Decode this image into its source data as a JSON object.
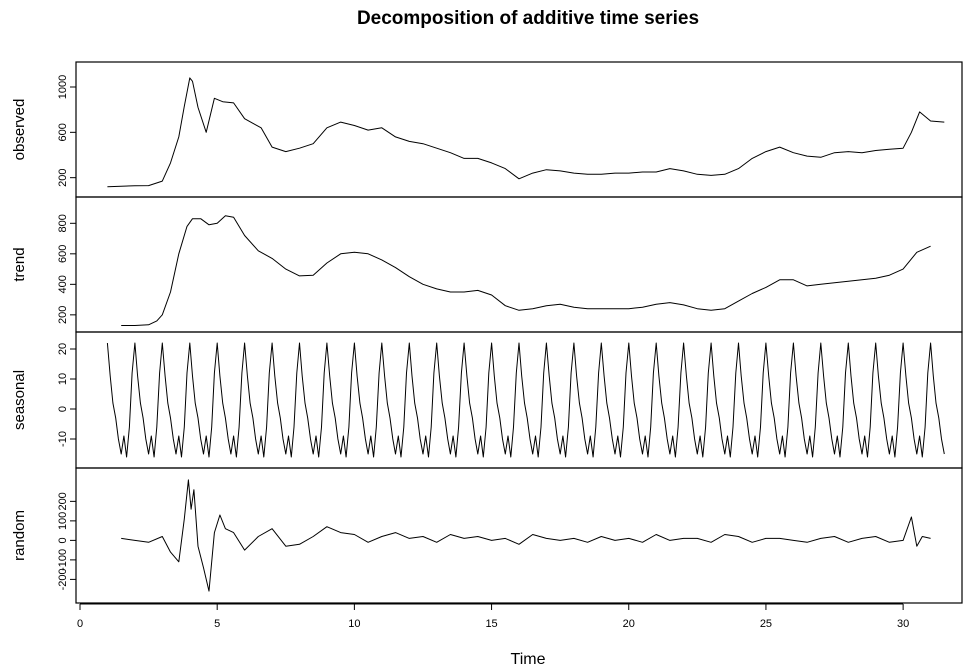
{
  "chart_data": {
    "type": "line",
    "title": "Decomposition of additive time series",
    "xlabel": "Time",
    "xlim": [
      0,
      32
    ],
    "x_ticks": [
      "0",
      "5",
      "10",
      "15",
      "20",
      "25",
      "30"
    ],
    "grid": false,
    "line_color": "#000000",
    "panels": [
      {
        "name": "observed",
        "ylabel": "observed",
        "ylim": [
          100,
          1150
        ],
        "y_ticks": [
          "200",
          "600",
          "1000"
        ],
        "x": [
          1,
          1.5,
          2,
          2.5,
          3,
          3.3,
          3.6,
          3.8,
          4.0,
          4.1,
          4.3,
          4.6,
          4.9,
          5.2,
          5.6,
          6.0,
          6.3,
          6.6,
          7.0,
          7.5,
          8.0,
          8.5,
          9.0,
          9.5,
          10,
          10.5,
          11,
          11.5,
          12,
          12.5,
          13,
          13.5,
          14,
          14.5,
          15,
          15.5,
          16,
          16.5,
          17,
          17.5,
          18,
          18.5,
          19,
          19.5,
          20,
          20.5,
          21,
          21.5,
          22,
          22.5,
          23,
          23.5,
          24,
          24.5,
          25,
          25.5,
          26,
          26.5,
          27,
          27.5,
          28,
          28.5,
          29,
          29.5,
          30,
          30.3,
          30.6,
          31.0,
          31.5
        ],
        "values": [
          120,
          125,
          128,
          130,
          170,
          330,
          560,
          830,
          1080,
          1050,
          820,
          600,
          900,
          870,
          860,
          720,
          680,
          640,
          470,
          430,
          460,
          500,
          640,
          690,
          660,
          620,
          640,
          560,
          520,
          500,
          460,
          420,
          370,
          370,
          330,
          280,
          190,
          240,
          270,
          260,
          240,
          230,
          230,
          240,
          240,
          250,
          250,
          280,
          260,
          230,
          220,
          230,
          280,
          370,
          430,
          470,
          420,
          390,
          380,
          420,
          430,
          420,
          440,
          450,
          460,
          600,
          780,
          700,
          690
        ]
      },
      {
        "name": "trend",
        "ylabel": "trend",
        "ylim": [
          140,
          920
        ],
        "y_ticks": [
          "200",
          "400",
          "600",
          "800"
        ],
        "x": [
          1.5,
          2,
          2.5,
          2.8,
          3.0,
          3.3,
          3.6,
          3.9,
          4.1,
          4.4,
          4.7,
          5.0,
          5.3,
          5.6,
          6.0,
          6.5,
          7.0,
          7.5,
          8.0,
          8.5,
          9.0,
          9.5,
          10,
          10.5,
          11,
          11.5,
          12,
          12.5,
          13,
          13.5,
          14,
          14.5,
          15,
          15.5,
          16,
          16.5,
          17,
          17.5,
          18,
          18.5,
          19,
          19.5,
          20,
          20.5,
          21,
          21.5,
          22,
          22.5,
          23,
          23.5,
          24,
          24.5,
          25,
          25.5,
          26,
          26.5,
          27,
          27.5,
          28,
          28.5,
          29,
          29.5,
          30,
          30.5,
          31
        ],
        "values": [
          130,
          130,
          135,
          160,
          200,
          350,
          600,
          780,
          830,
          830,
          790,
          800,
          850,
          840,
          720,
          620,
          570,
          500,
          455,
          460,
          540,
          600,
          610,
          600,
          560,
          510,
          450,
          400,
          370,
          350,
          350,
          360,
          330,
          260,
          230,
          240,
          260,
          270,
          250,
          240,
          240,
          240,
          240,
          250,
          270,
          280,
          265,
          240,
          230,
          240,
          290,
          340,
          380,
          430,
          430,
          390,
          400,
          410,
          420,
          430,
          440,
          460,
          500,
          610,
          650
        ]
      },
      {
        "name": "seasonal",
        "ylabel": "seasonal",
        "ylim": [
          -17,
          23
        ],
        "y_ticks": [
          "-10",
          "0",
          "10",
          "20"
        ],
        "period": 1,
        "x_start": 1,
        "x_end": 31.5,
        "season_x": [
          0,
          0.1,
          0.2,
          0.3,
          0.4,
          0.5,
          0.6,
          0.7,
          0.8,
          0.9,
          1.0
        ],
        "season_values": [
          22,
          11,
          2,
          -3,
          -10,
          -15,
          -9,
          -16,
          -6,
          12,
          22
        ]
      },
      {
        "name": "random",
        "ylabel": "random",
        "ylim": [
          -280,
          330
        ],
        "y_ticks": [
          "-200",
          "-100",
          "0",
          "100",
          "200"
        ],
        "x": [
          1.5,
          2.0,
          2.5,
          3.0,
          3.3,
          3.6,
          3.8,
          3.95,
          4.05,
          4.15,
          4.3,
          4.5,
          4.7,
          4.9,
          5.1,
          5.3,
          5.6,
          6.0,
          6.5,
          7.0,
          7.5,
          8.0,
          8.5,
          9.0,
          9.5,
          10,
          10.5,
          11,
          11.5,
          12,
          12.5,
          13,
          13.5,
          14,
          14.5,
          15,
          15.5,
          16,
          16.5,
          17,
          17.5,
          18,
          18.5,
          19,
          19.5,
          20,
          20.5,
          21,
          21.5,
          22,
          22.5,
          23,
          23.5,
          24,
          24.5,
          25,
          25.5,
          26,
          26.5,
          27,
          27.5,
          28,
          28.5,
          29,
          29.5,
          30,
          30.3,
          30.5,
          30.7,
          31.0
        ],
        "values": [
          10,
          0,
          -10,
          20,
          -60,
          -110,
          110,
          310,
          160,
          260,
          -30,
          -140,
          -260,
          40,
          130,
          60,
          40,
          -50,
          20,
          60,
          -30,
          -20,
          20,
          70,
          40,
          30,
          -10,
          20,
          40,
          10,
          20,
          -10,
          30,
          10,
          20,
          0,
          10,
          -20,
          30,
          10,
          0,
          10,
          -10,
          20,
          0,
          10,
          -10,
          30,
          0,
          10,
          10,
          -10,
          30,
          20,
          -10,
          10,
          10,
          0,
          -10,
          10,
          20,
          -10,
          10,
          20,
          -10,
          0,
          120,
          -30,
          20,
          10
        ]
      }
    ]
  }
}
